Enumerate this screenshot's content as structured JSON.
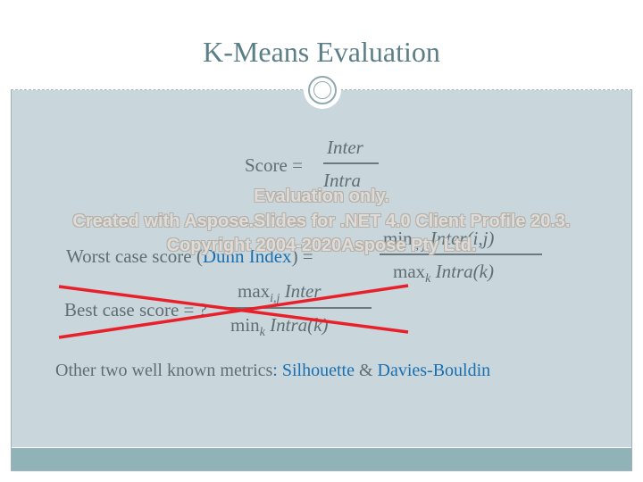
{
  "slide": {
    "title": "K-Means Evaluation"
  },
  "score": {
    "label": "Score =",
    "numerator": "Inter",
    "denominator": "Intra"
  },
  "worst_case": {
    "label_prefix": "Worst case score (",
    "link": "Dunn Index",
    "label_suffix": ") =",
    "numerator_op": "min",
    "numerator_sub": "i, j",
    "numerator_term": "Inter(i,j)",
    "denominator_op": "max",
    "denominator_sub": "k",
    "denominator_term": "Intra(k)"
  },
  "best_case": {
    "label": "Best case score = ?",
    "numerator_op": "max",
    "numerator_sub": "i,j",
    "numerator_term": "Inter",
    "denominator_op": "min",
    "denominator_sub": "k",
    "denominator_term": "Intra(k)"
  },
  "metrics": {
    "prefix": "Other two well known metrics",
    "colon": ":",
    "metric1": "Silhouette",
    "amp": "&",
    "metric2": "Davies-Bouldin"
  },
  "watermark": {
    "line1": "Evaluation only.",
    "line2": "Created with Aspose.Slides for .NET 4.0 Client Profile 20.3.",
    "line3": "Copyright 2004-2020Aspose Pty Ltd."
  },
  "colors": {
    "title": "#5a7f86",
    "content_bg": "#c9d6db",
    "footer_bar": "#8fb3b6",
    "link_blue": "#1a6fb0",
    "cross_red": "#e8202a"
  }
}
